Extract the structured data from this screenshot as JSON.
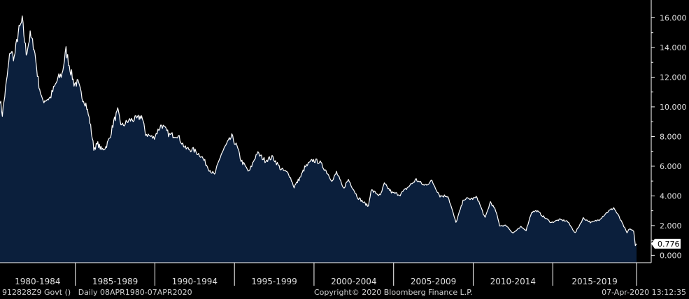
{
  "footer": {
    "security": "912828Z9 Govt ()",
    "range": "Daily 08APR1980-07APR2020",
    "copyright": "Copyright© 2020 Bloomberg Finance L.P.",
    "timestamp": "07-Apr-2020 13:12:35"
  },
  "colors": {
    "background": "#000000",
    "area_fill": "#0b1f3c",
    "line": "#ffffff",
    "axis": "#ffffff",
    "last_value_box": "#ffffff",
    "last_value_text": "#000000"
  },
  "chart_data": {
    "type": "area",
    "title": "",
    "xlabel": "",
    "ylabel": "",
    "x_start": "1980-04-08",
    "x_end": "2020-04-07",
    "ylim": [
      -0.5,
      17.2
    ],
    "y_ticks": [
      "0.000",
      "2.000",
      "4.000",
      "6.000",
      "8.000",
      "10.000",
      "12.000",
      "14.000",
      "16.000"
    ],
    "x_tick_labels": [
      "1980-1984",
      "1985-1989",
      "1990-1994",
      "1995-1999",
      "2000-2004",
      "2005-2009",
      "2010-2014",
      "2015-2019"
    ],
    "last_value": 0.776,
    "last_value_label": "0.776",
    "grid": false,
    "series": [
      {
        "x": [
          "1980-04-08",
          "1980-06-01",
          "1980-09-01",
          "1980-12-01",
          "1981-03-01",
          "1981-06-01",
          "1981-09-01",
          "1981-12-01",
          "1982-03-01",
          "1982-06-01",
          "1982-09-01",
          "1982-12-01",
          "1983-06-01",
          "1983-12-01",
          "1984-03-01",
          "1984-06-01",
          "1984-09-01",
          "1984-12-01",
          "1985-03-01",
          "1985-06-01",
          "1985-09-01",
          "1985-12-01",
          "1986-03-01",
          "1986-06-01",
          "1986-09-01",
          "1986-12-01",
          "1987-03-01",
          "1987-06-01",
          "1987-09-01",
          "1987-12-01",
          "1988-06-01",
          "1988-12-01",
          "1989-03-01",
          "1989-06-01",
          "1989-12-01",
          "1990-06-01",
          "1990-12-01",
          "1991-06-01",
          "1991-12-01",
          "1992-06-01",
          "1992-12-01",
          "1993-06-01",
          "1993-10-01",
          "1994-03-01",
          "1994-06-01",
          "1994-11-01",
          "1995-03-01",
          "1995-06-01",
          "1995-12-01",
          "1996-06-01",
          "1996-12-01",
          "1997-06-01",
          "1997-12-01",
          "1998-06-01",
          "1998-10-01",
          "1999-03-01",
          "1999-06-01",
          "1999-12-01",
          "2000-05-01",
          "2000-10-01",
          "2001-03-01",
          "2001-06-01",
          "2001-11-01",
          "2002-03-01",
          "2002-10-01",
          "2003-06-01",
          "2003-08-01",
          "2004-03-01",
          "2004-06-01",
          "2004-12-01",
          "2005-06-01",
          "2005-12-01",
          "2006-06-01",
          "2006-12-01",
          "2007-06-01",
          "2007-12-01",
          "2008-06-01",
          "2008-12-01",
          "2009-06-01",
          "2009-12-01",
          "2010-04-01",
          "2010-10-01",
          "2011-02-01",
          "2011-06-01",
          "2011-09-01",
          "2012-02-01",
          "2012-07-01",
          "2013-01-01",
          "2013-05-01",
          "2013-09-01",
          "2014-01-01",
          "2014-06-01",
          "2014-12-01",
          "2015-06-01",
          "2015-12-01",
          "2016-06-01",
          "2016-12-01",
          "2017-06-01",
          "2017-12-01",
          "2018-06-01",
          "2018-11-01",
          "2019-03-01",
          "2019-09-01",
          "2019-11-01",
          "2020-02-01",
          "2020-03-10",
          "2020-04-07"
        ],
        "y": [
          10.5,
          9.5,
          11.6,
          13.8,
          13.3,
          15.0,
          15.8,
          13.6,
          14.8,
          14.0,
          11.8,
          10.4,
          10.6,
          11.9,
          12.2,
          13.8,
          12.6,
          11.6,
          11.6,
          10.7,
          10.2,
          9.0,
          7.2,
          7.5,
          7.1,
          7.3,
          7.9,
          9.0,
          9.7,
          8.7,
          9.1,
          9.2,
          9.4,
          8.2,
          7.9,
          8.8,
          8.1,
          8.1,
          7.2,
          7.1,
          6.7,
          5.8,
          5.4,
          6.8,
          7.3,
          8.0,
          7.3,
          6.4,
          5.6,
          6.9,
          6.4,
          6.6,
          5.8,
          5.5,
          4.6,
          5.3,
          5.9,
          6.4,
          6.3,
          5.7,
          5.0,
          5.6,
          4.5,
          5.1,
          3.9,
          3.3,
          4.4,
          4.0,
          4.8,
          4.2,
          4.1,
          4.6,
          5.1,
          4.7,
          5.0,
          4.0,
          4.0,
          2.2,
          3.8,
          3.8,
          3.9,
          2.5,
          3.6,
          3.0,
          2.0,
          2.0,
          1.5,
          1.9,
          1.7,
          2.9,
          3.0,
          2.6,
          2.2,
          2.4,
          2.3,
          1.5,
          2.5,
          2.2,
          2.4,
          2.9,
          3.2,
          2.6,
          1.5,
          1.8,
          1.6,
          0.7,
          0.776
        ]
      }
    ]
  }
}
